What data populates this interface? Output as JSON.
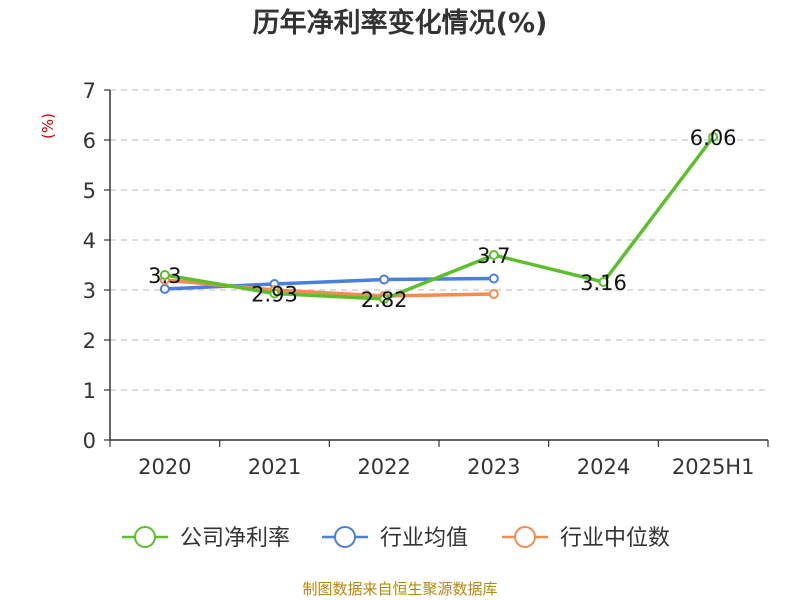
{
  "chart_data": {
    "type": "line",
    "title": "历年净利率变化情况(%)",
    "ylabel": "(%)",
    "xlabel": "",
    "categories": [
      "2020",
      "2021",
      "2022",
      "2023",
      "2024",
      "2025H1"
    ],
    "ylim": [
      0,
      7
    ],
    "yticks": [
      0,
      1,
      2,
      3,
      4,
      5,
      6,
      7
    ],
    "grid": true,
    "legend_position": "bottom",
    "series": [
      {
        "name": "公司净利率",
        "color": "#5dbf2e",
        "values": [
          3.3,
          2.93,
          2.82,
          3.7,
          3.16,
          6.06
        ],
        "labels": [
          "3.3",
          "2.93",
          "2.82",
          "3.7",
          "3.16",
          "6.06"
        ]
      },
      {
        "name": "行业均值",
        "color": "#4a7fdc",
        "values": [
          3.02,
          3.12,
          3.21,
          3.23,
          null,
          null
        ]
      },
      {
        "name": "行业中位数",
        "color": "#f28c50",
        "values": [
          3.2,
          3.0,
          2.88,
          2.92,
          null,
          null
        ]
      }
    ]
  },
  "source": "制图数据来自恒生聚源数据库"
}
